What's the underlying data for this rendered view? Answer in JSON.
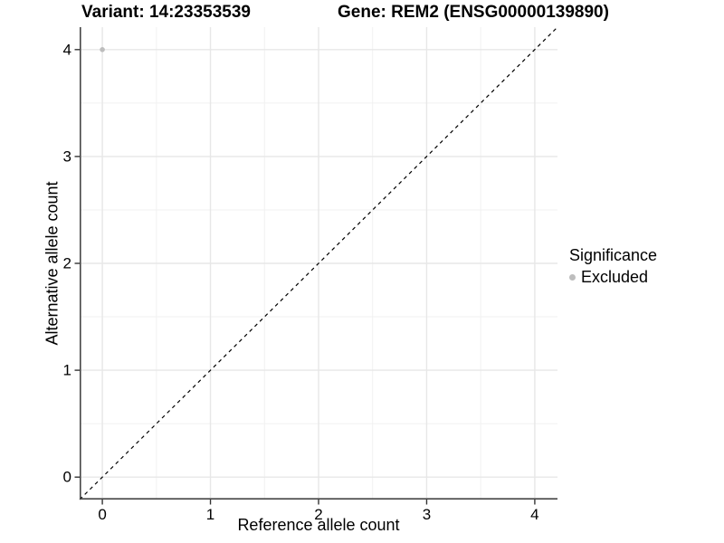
{
  "chart_data": {
    "type": "scatter",
    "title_left": "Variant: 14:23353539",
    "title_right": "Gene: REM2 (ENSG00000139890)",
    "xlabel": "Reference allele count",
    "ylabel": "Alternative allele count",
    "xlim": [
      -0.21,
      4.21
    ],
    "ylim": [
      -0.21,
      4.21
    ],
    "x_ticks": [
      "0",
      "1",
      "2",
      "3",
      "4"
    ],
    "x_tick_values": [
      0,
      1,
      2,
      3,
      4
    ],
    "y_ticks": [
      "0",
      "1",
      "2",
      "3",
      "4"
    ],
    "y_tick_values": [
      0,
      1,
      2,
      3,
      4
    ],
    "minor_tick_values": [
      0.5,
      1.5,
      2.5,
      3.5
    ],
    "grid": true,
    "points": [
      {
        "x": 0,
        "y": 4,
        "series": "Excluded"
      }
    ],
    "reference_line": {
      "kind": "identity",
      "style": "dashed",
      "color": "#000000"
    },
    "legend": {
      "title": "Significance",
      "position": "right",
      "entries": [
        {
          "label": "Excluded",
          "color": "#bdbdbd"
        }
      ]
    },
    "colors": {
      "point": "#bdbdbd",
      "grid_major": "#e7e7e7",
      "grid_minor": "#f1f1f1",
      "axis_line": "#464646",
      "tick_mark": "#333333",
      "text": "#000000",
      "background": "#ffffff"
    }
  }
}
